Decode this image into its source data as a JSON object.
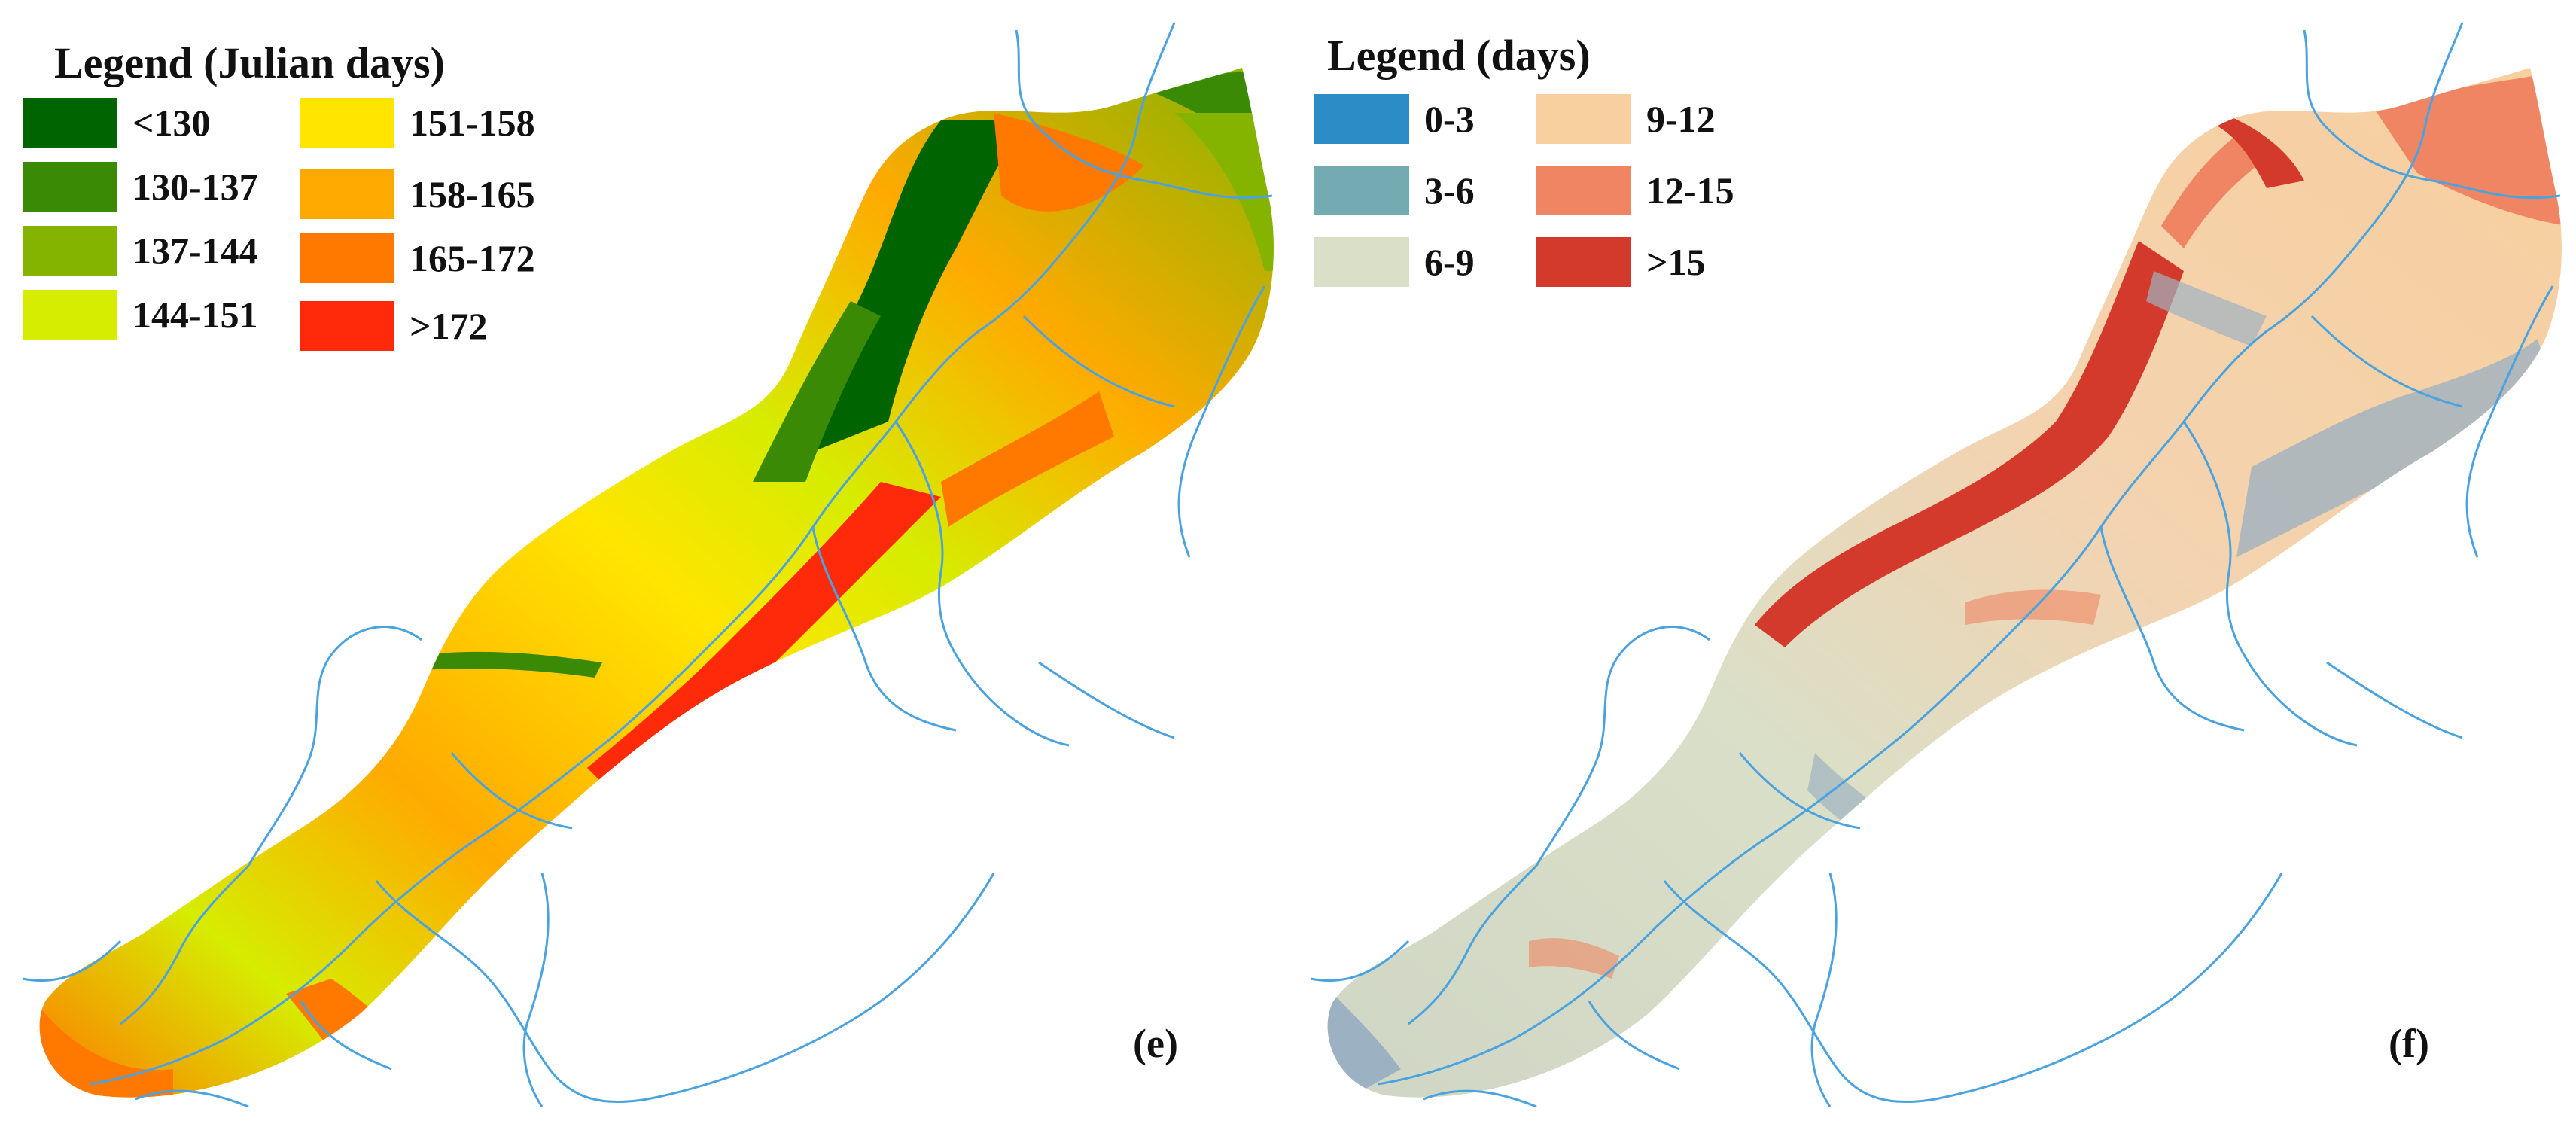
{
  "colors": {
    "river": "#4aa3df",
    "background": "#ffffff"
  },
  "panel_e": {
    "label": "(e)",
    "legend": {
      "title": "Legend (Julian days)",
      "items": [
        {
          "label": "<130",
          "color": "#006400"
        },
        {
          "label": "130-137",
          "color": "#3b8a06"
        },
        {
          "label": "137-144",
          "color": "#84b400"
        },
        {
          "label": "144-151",
          "color": "#d6ec00"
        },
        {
          "label": "151-158",
          "color": "#ffe500"
        },
        {
          "label": "158-165",
          "color": "#ffaa00"
        },
        {
          "label": "165-172",
          "color": "#ff7800"
        },
        {
          "label": ">172",
          "color": "#ff2a0a"
        }
      ]
    }
  },
  "panel_f": {
    "label": "(f)",
    "legend": {
      "title": "Legend (days)",
      "items": [
        {
          "label": "0-3",
          "color": "#2b8cc6"
        },
        {
          "label": "3-6",
          "color": "#74aab1"
        },
        {
          "label": "6-9",
          "color": "#dadfc8"
        },
        {
          "label": "9-12",
          "color": "#f8cf9e"
        },
        {
          "label": "12-15",
          "color": "#ef8562"
        },
        {
          "label": ">15",
          "color": "#d33a2c"
        }
      ]
    }
  }
}
